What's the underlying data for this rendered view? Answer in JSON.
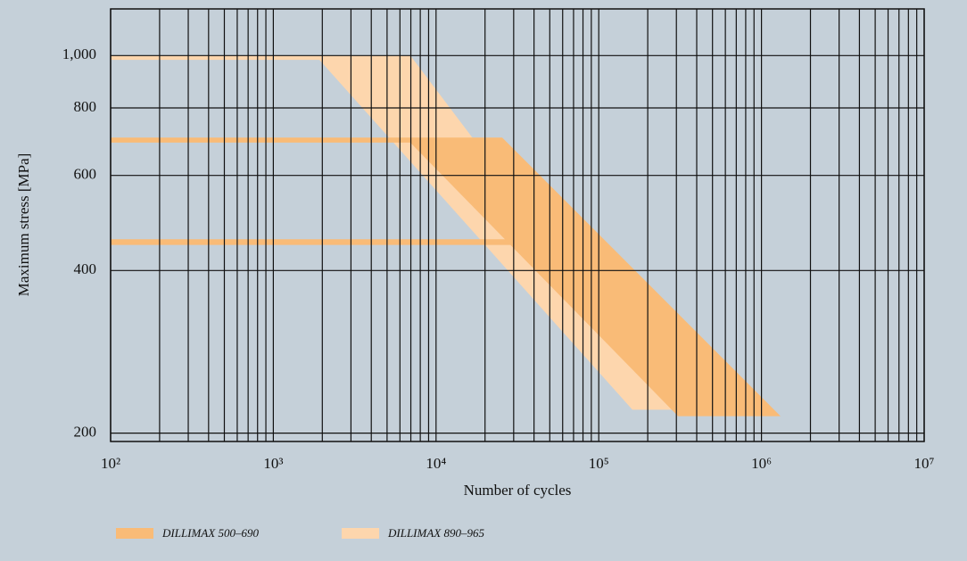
{
  "chart_data": {
    "type": "band",
    "xlabel": "Number of cycles",
    "ylabel": "Maximum stress [MPa]",
    "xscale": "log",
    "yscale": "log",
    "xlim": [
      100,
      10000000
    ],
    "ylim": [
      193,
      1220
    ],
    "xticks": [
      {
        "value": 100,
        "label": "10²"
      },
      {
        "value": 1000,
        "label": "10³"
      },
      {
        "value": 10000,
        "label": "10⁴"
      },
      {
        "value": 100000,
        "label": "10⁵"
      },
      {
        "value": 1000000,
        "label": "10⁶"
      },
      {
        "value": 10000000,
        "label": "10⁷"
      }
    ],
    "minor_xticks": [
      200,
      300,
      400,
      500,
      600,
      700,
      800,
      900,
      2000,
      3000,
      4000,
      5000,
      6000,
      7000,
      8000,
      9000,
      20000,
      30000,
      40000,
      50000,
      60000,
      70000,
      80000,
      90000,
      200000,
      300000,
      400000,
      500000,
      600000,
      700000,
      800000,
      900000,
      2000000,
      3000000,
      4000000,
      5000000,
      6000000,
      7000000,
      8000000,
      9000000
    ],
    "yticks": [
      200,
      400,
      600,
      800,
      {
        "value": 1000,
        "label": "1,000"
      }
    ],
    "grid": true,
    "legend": "bottom-left",
    "series": [
      {
        "name": "DILLIMAX 500–690",
        "color": "#f9bb77",
        "polygons": [
          {
            "x": [
              100,
              25500,
              1310000,
              307000,
              6950,
              100
            ],
            "y": [
              705,
              705,
              215,
              215,
              690,
              690
            ]
          },
          {
            "x": [
              100,
              29700,
              29700,
              100
            ],
            "y": [
              457,
              457,
              446,
              446
            ]
          }
        ]
      },
      {
        "name": "DILLIMAX 890–965",
        "color": "#fdd6ad",
        "polygons": [
          {
            "x": [
              100,
              6950,
              307000,
              161000,
              1920,
              100
            ],
            "y": [
              1000,
              1000,
              221,
              221,
              982,
              982
            ]
          }
        ]
      }
    ]
  }
}
